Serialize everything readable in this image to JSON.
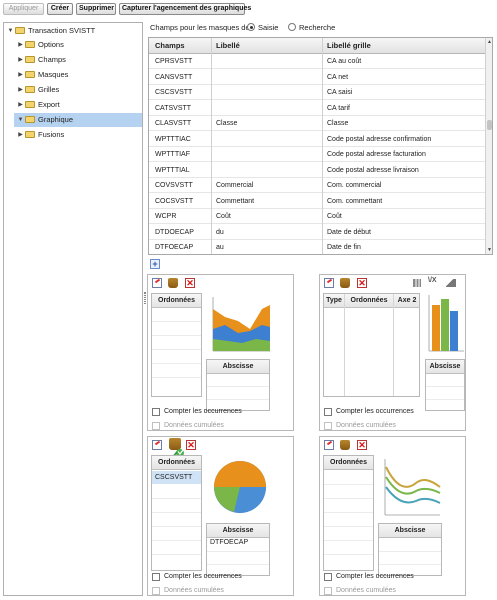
{
  "toolbar": {
    "apply": "Appliquer",
    "create": "Créer",
    "delete": "Supprimer",
    "capture": "Capturer l'agencement des graphiques"
  },
  "tree": {
    "root": "Transaction SVISTT",
    "items": [
      "Options",
      "Champs",
      "Masques",
      "Grilles",
      "Export",
      "Graphique",
      "Fusions"
    ],
    "selected": "Graphique"
  },
  "mask_mode": {
    "label": "Champs pour les masques de",
    "options": [
      "Saisie",
      "Recherche"
    ],
    "selected": "Saisie"
  },
  "grid": {
    "headers": [
      "Champs",
      "Libellé",
      "Libellé grille"
    ],
    "rows": [
      [
        "CPRSVSTT",
        "",
        "CA au coût"
      ],
      [
        "CANSVSTT",
        "",
        "CA net"
      ],
      [
        "CSCSVSTT",
        "",
        "CA saisi"
      ],
      [
        "CATSVSTT",
        "",
        "CA tarif"
      ],
      [
        "CLASVSTT",
        "Classe",
        "Classe"
      ],
      [
        "WPTTTIAC",
        "",
        "Code postal adresse confirmation"
      ],
      [
        "WPTTTIAF",
        "",
        "Code postal adresse facturation"
      ],
      [
        "WPTTTIAL",
        "",
        "Code postal adresse livraison"
      ],
      [
        "COVSVSTT",
        "Commercial",
        "Com. commercial"
      ],
      [
        "COCSVSTT",
        "Commettant",
        "Com. commettant"
      ],
      [
        "WCPR",
        "Coût",
        "Coût"
      ],
      [
        "DTDOECAP",
        "du",
        "Date de début"
      ],
      [
        "DTFOECAP",
        "au",
        "Date de fin"
      ]
    ]
  },
  "add_button": "+",
  "panels": [
    {
      "ordinates_header": "Ordonnées",
      "ordinates": [],
      "abscissa_header": "Abscisse",
      "abscissa": [],
      "count_label": "Compter les occurrences",
      "cumulative_label": "Données cumulées",
      "chart": "area-chart-icon"
    },
    {
      "type_header": "Type",
      "ordinates_header": "Ordonnées",
      "axis2_header": "Axe 2",
      "abscissa_header": "Abscisse",
      "abscissa": [],
      "count_label": "Compter les occurrences",
      "cumulative_label": "Données cumulées",
      "chart": "bar-chart-icon"
    },
    {
      "ordinates_header": "Ordonnées",
      "ordinates": [
        "CSCSVSTT"
      ],
      "abscissa_header": "Abscisse",
      "abscissa": [
        "DTFOECAP"
      ],
      "count_label": "Compter les occurrences",
      "cumulative_label": "Données cumulées",
      "chart": "pie-chart-icon"
    },
    {
      "ordinates_header": "Ordonnées",
      "ordinates": [],
      "abscissa_header": "Abscisse",
      "abscissa": [],
      "count_label": "Compter les occurrences",
      "cumulative_label": "Données cumulées",
      "chart": "line-chart-icon"
    }
  ],
  "colors": {
    "selection": "#b5d3f1",
    "orange": "#e8901c",
    "blue": "#3d7fd0",
    "green": "#7ab648",
    "teal": "#4aa3b8"
  }
}
